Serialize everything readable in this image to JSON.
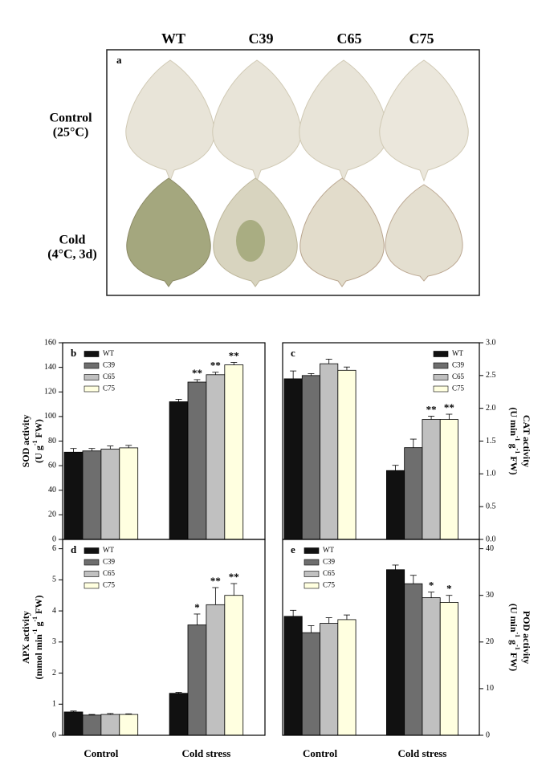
{
  "photo_panel": {
    "label": "a",
    "columns": [
      "WT",
      "C39",
      "C65",
      "C75"
    ],
    "rows": [
      [
        "Control",
        "(25°C)"
      ],
      [
        "Cold",
        "(4°C, 3d)"
      ]
    ]
  },
  "chart_data": [
    {
      "type": "bar",
      "panel_label": "b",
      "y_axis": "left",
      "legend": "upper left",
      "ylim": [
        0,
        160
      ],
      "yticks": [
        0,
        20,
        40,
        60,
        80,
        100,
        120,
        140,
        160
      ],
      "ylabel": [
        [
          {
            "text": "SOD activity"
          }
        ],
        [
          {
            "text": "(U g"
          },
          {
            "text": "-1",
            "sup": true
          },
          {
            "text": " FW)"
          }
        ]
      ],
      "series": [
        {
          "name": "WT",
          "color": "#111111",
          "values": [
            71,
            112
          ],
          "errors": [
            3,
            2
          ],
          "significance": [
            null,
            null
          ]
        },
        {
          "name": "C39",
          "color": "#6e6e6e",
          "values": [
            72,
            128
          ],
          "errors": [
            2,
            2
          ],
          "significance": [
            null,
            "**"
          ]
        },
        {
          "name": "C65",
          "color": "#c0c0c0",
          "values": [
            73.5,
            134
          ],
          "errors": [
            2.5,
            2
          ],
          "significance": [
            null,
            "**"
          ]
        },
        {
          "name": "C75",
          "color": "#ffffe0",
          "values": [
            74.5,
            142
          ],
          "errors": [
            2,
            2
          ],
          "significance": [
            null,
            "**"
          ]
        }
      ]
    },
    {
      "type": "bar",
      "panel_label": "c",
      "y_axis": "right",
      "legend": "upper right",
      "ylim": [
        0,
        3
      ],
      "yticks": [
        {
          "value": 0,
          "label": "0.0"
        },
        0.5,
        {
          "value": 1,
          "label": "1.0"
        },
        1.5,
        {
          "value": 2,
          "label": "2.0"
        },
        2.5,
        {
          "value": 3,
          "label": "3.0"
        }
      ],
      "ylabel": [
        [
          {
            "text": "CAT activity"
          }
        ],
        [
          {
            "text": "(U min"
          },
          {
            "text": "-1",
            "sup": true
          },
          {
            "text": " g"
          },
          {
            "text": "-1",
            "sup": true
          },
          {
            "text": " FW)"
          }
        ]
      ],
      "series": [
        {
          "name": "WT",
          "color": "#111111",
          "values": [
            2.45,
            1.05
          ],
          "errors": [
            0.12,
            0.08
          ],
          "significance": [
            null,
            null
          ]
        },
        {
          "name": "C39",
          "color": "#6e6e6e",
          "values": [
            2.5,
            1.4
          ],
          "errors": [
            0.03,
            0.13
          ],
          "significance": [
            null,
            null
          ]
        },
        {
          "name": "C65",
          "color": "#c0c0c0",
          "values": [
            2.68,
            1.83
          ],
          "errors": [
            0.07,
            0.05
          ],
          "significance": [
            null,
            "**"
          ]
        },
        {
          "name": "C75",
          "color": "#ffffe0",
          "values": [
            2.58,
            1.83
          ],
          "errors": [
            0.05,
            0.08
          ],
          "significance": [
            null,
            "**"
          ]
        }
      ]
    },
    {
      "type": "bar",
      "panel_label": "d",
      "y_axis": "left",
      "legend": "upper left",
      "ylim": [
        0,
        6.3
      ],
      "yticks": [
        0,
        1,
        2,
        3,
        4,
        5,
        6
      ],
      "categories": [
        "Control",
        "Cold stress"
      ],
      "ylabel": [
        [
          {
            "text": "APX activity"
          }
        ],
        [
          {
            "text": "(mmol min"
          },
          {
            "text": "-1",
            "sup": true
          },
          {
            "text": " g"
          },
          {
            "text": "-1",
            "sup": true
          },
          {
            "text": " FW)"
          }
        ]
      ],
      "series": [
        {
          "name": "WT",
          "color": "#111111",
          "values": [
            0.75,
            1.35
          ],
          "errors": [
            0.03,
            0.03
          ],
          "significance": [
            null,
            null
          ]
        },
        {
          "name": "C39",
          "color": "#6e6e6e",
          "values": [
            0.65,
            3.55
          ],
          "errors": [
            0.02,
            0.35
          ],
          "significance": [
            null,
            "*"
          ]
        },
        {
          "name": "C65",
          "color": "#c0c0c0",
          "values": [
            0.67,
            4.2
          ],
          "errors": [
            0.03,
            0.55
          ],
          "significance": [
            null,
            "**"
          ]
        },
        {
          "name": "C75",
          "color": "#ffffe0",
          "values": [
            0.67,
            4.5
          ],
          "errors": [
            0.02,
            0.38
          ],
          "significance": [
            null,
            "**"
          ]
        }
      ]
    },
    {
      "type": "bar",
      "panel_label": "e",
      "y_axis": "right",
      "legend": "upper left",
      "ylim": [
        0,
        42
      ],
      "yticks": [
        0,
        10,
        20,
        30,
        40
      ],
      "categories": [
        "Control",
        "Cold stress"
      ],
      "ylabel": [
        [
          {
            "text": "POD activity"
          }
        ],
        [
          {
            "text": "(U min"
          },
          {
            "text": "-1",
            "sup": true
          },
          {
            "text": " g"
          },
          {
            "text": "-1",
            "sup": true
          },
          {
            "text": " FW)"
          }
        ]
      ],
      "series": [
        {
          "name": "WT",
          "color": "#111111",
          "values": [
            25.5,
            35.5
          ],
          "errors": [
            1.3,
            1
          ],
          "significance": [
            null,
            null
          ]
        },
        {
          "name": "C39",
          "color": "#6e6e6e",
          "values": [
            22,
            32.5
          ],
          "errors": [
            1.5,
            1.8
          ],
          "significance": [
            null,
            null
          ]
        },
        {
          "name": "C65",
          "color": "#c0c0c0",
          "values": [
            24,
            29.5
          ],
          "errors": [
            1.2,
            1.2
          ],
          "significance": [
            null,
            "*"
          ]
        },
        {
          "name": "C75",
          "color": "#ffffe0",
          "values": [
            24.8,
            28.5
          ],
          "errors": [
            1,
            1.5
          ],
          "significance": [
            null,
            "*"
          ]
        }
      ]
    }
  ]
}
